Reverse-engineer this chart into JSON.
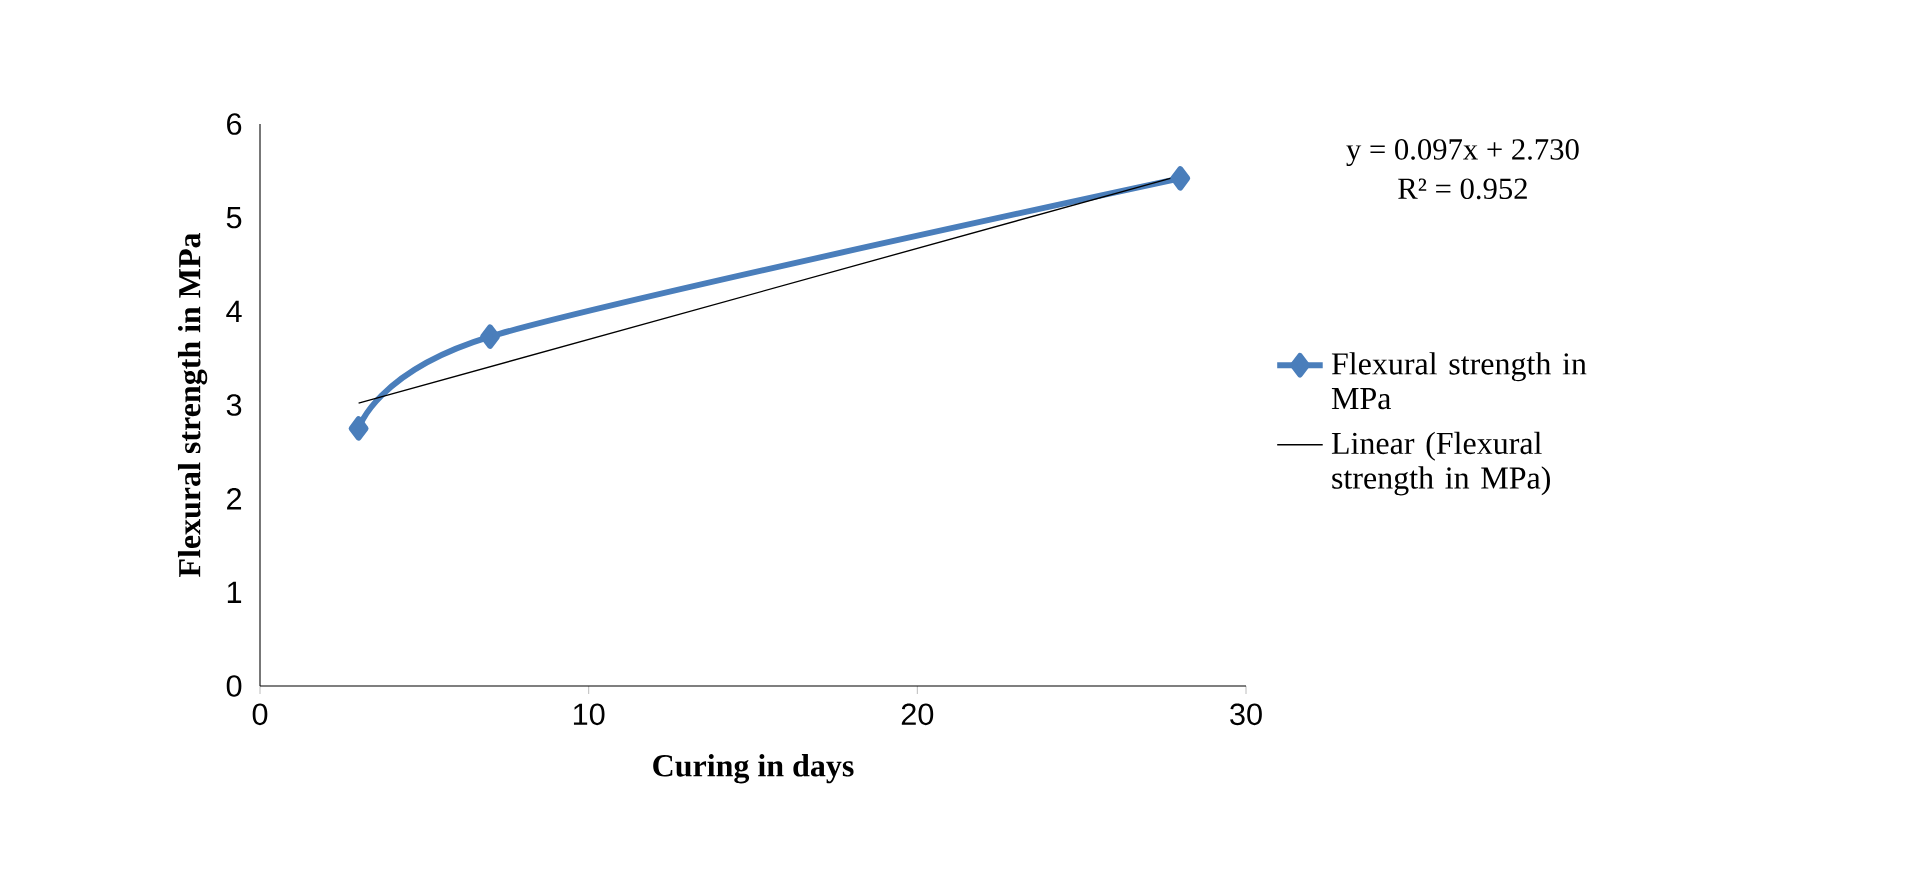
{
  "chart_data": {
    "type": "line",
    "xlabel": "Curing in days",
    "ylabel": "Flexural strength in MPa",
    "xlim": [
      0,
      30
    ],
    "xticks": [
      0,
      10,
      20,
      30
    ],
    "ylim": [
      0,
      6
    ],
    "yticks": [
      0,
      1,
      2,
      3,
      4,
      5,
      6
    ],
    "series": [
      {
        "name": "Flexural strength in MPa",
        "color": "#4a7ebb",
        "x": [
          3,
          7,
          28
        ],
        "values": [
          2.75,
          3.73,
          5.42
        ],
        "marker": "diamond",
        "line_style": "solid"
      },
      {
        "name": "Linear (Flexural strength in MPa)",
        "color": "#000000",
        "x": [
          3,
          28
        ],
        "values": [
          3.02,
          5.45
        ],
        "marker": "none",
        "line_style": "solid"
      }
    ],
    "annotations": [
      "y = 0.097x + 2.730",
      "R² = 0.952"
    ],
    "legend": "right",
    "grid": false
  }
}
